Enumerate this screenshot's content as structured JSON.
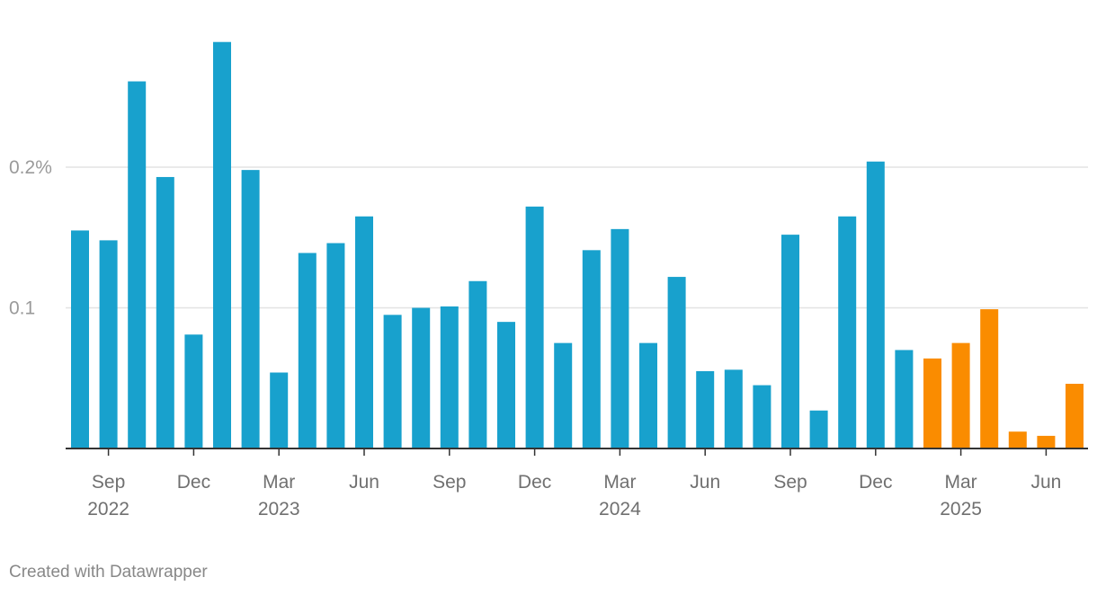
{
  "chart_data": {
    "type": "bar",
    "ylim": [
      0,
      0.3
    ],
    "y_ticks": [
      {
        "value": 0.2,
        "label": "0.2%"
      },
      {
        "value": 0.1,
        "label": "0.1"
      }
    ],
    "x_ticks": [
      {
        "index": 1,
        "month": "Sep",
        "year": "2022"
      },
      {
        "index": 4,
        "month": "Dec",
        "year": ""
      },
      {
        "index": 7,
        "month": "Mar",
        "year": "2023"
      },
      {
        "index": 10,
        "month": "Jun",
        "year": ""
      },
      {
        "index": 13,
        "month": "Sep",
        "year": ""
      },
      {
        "index": 16,
        "month": "Dec",
        "year": ""
      },
      {
        "index": 19,
        "month": "Mar",
        "year": "2024"
      },
      {
        "index": 22,
        "month": "Jun",
        "year": ""
      },
      {
        "index": 25,
        "month": "Sep",
        "year": ""
      },
      {
        "index": 28,
        "month": "Dec",
        "year": ""
      },
      {
        "index": 31,
        "month": "Mar",
        "year": "2025"
      },
      {
        "index": 34,
        "month": "Jun",
        "year": ""
      }
    ],
    "series": [
      {
        "color": "#18a1cd",
        "x": [
          "2022-08",
          "2022-09",
          "2022-10",
          "2022-11",
          "2022-12",
          "2023-01",
          "2023-02",
          "2023-03",
          "2023-04",
          "2023-05",
          "2023-06",
          "2023-07",
          "2023-08",
          "2023-09",
          "2023-10",
          "2023-11",
          "2023-12",
          "2024-01",
          "2024-02",
          "2024-03",
          "2024-04",
          "2024-05",
          "2024-06",
          "2024-07",
          "2024-08",
          "2024-09",
          "2024-10",
          "2024-11",
          "2024-12",
          "2025-01"
        ],
        "values": [
          0.155,
          0.148,
          0.261,
          0.193,
          0.081,
          0.289,
          0.198,
          0.054,
          0.139,
          0.146,
          0.165,
          0.095,
          0.1,
          0.101,
          0.119,
          0.09,
          0.172,
          0.075,
          0.141,
          0.156,
          0.075,
          0.122,
          0.055,
          0.056,
          0.045,
          0.152,
          0.027,
          0.165,
          0.204,
          0.07
        ]
      },
      {
        "color": "#fa8c00",
        "x": [
          "2025-02",
          "2025-03",
          "2025-04",
          "2025-05",
          "2025-06",
          "2025-07"
        ],
        "values": [
          0.064,
          0.075,
          0.099,
          0.012,
          0.009,
          0.046
        ]
      }
    ],
    "grid": true
  },
  "footer": {
    "credit": "Created with Datawrapper"
  }
}
